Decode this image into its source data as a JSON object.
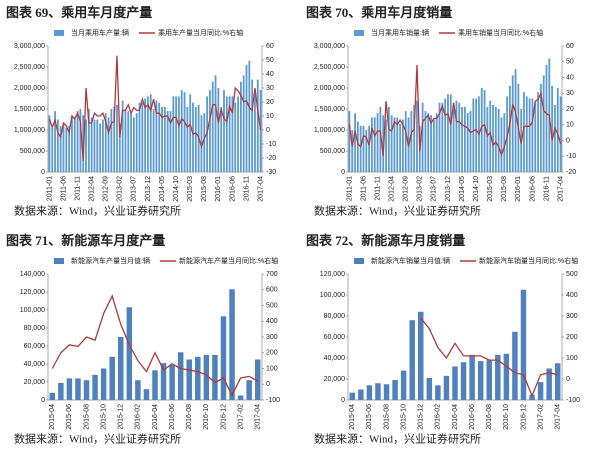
{
  "chart_data": [
    {
      "type": "bar",
      "title": "图表 69、乘用车月度产量",
      "source": "数据来源：Wind，兴业证券研究所",
      "categories": [
        "2011-01",
        null,
        null,
        null,
        null,
        "2011-06",
        null,
        null,
        null,
        null,
        "2011-11",
        null,
        null,
        null,
        null,
        "2012-04",
        null,
        null,
        null,
        null,
        "2012-09",
        null,
        null,
        null,
        null,
        "2013-02",
        null,
        null,
        null,
        null,
        "2013-07",
        null,
        null,
        null,
        null,
        "2013-12",
        null,
        null,
        null,
        null,
        "2014-05",
        null,
        null,
        null,
        null,
        "2014-10",
        null,
        null,
        null,
        null,
        "2015-03",
        null,
        null,
        null,
        null,
        "2015-08",
        null,
        null,
        null,
        null,
        "2016-01",
        null,
        null,
        null,
        null,
        "2016-06",
        null,
        null,
        null,
        null,
        "2016-11",
        null,
        null,
        null,
        null,
        "2017-04"
      ],
      "series": [
        {
          "name": "当月乘用车产量:辆",
          "type": "bar",
          "color": "#5b9bd5",
          "values": [
            1350000,
            1050000,
            1450000,
            1250000,
            1100000,
            1150000,
            1050000,
            1100000,
            1300000,
            1300000,
            1450000,
            1500000,
            1350000,
            1250000,
            1500000,
            1300000,
            1250000,
            1250000,
            1150000,
            1250000,
            1400000,
            1300000,
            1500000,
            1550000,
            1600000,
            1150000,
            1700000,
            1500000,
            1450000,
            1400000,
            1300000,
            1400000,
            1650000,
            1650000,
            1750000,
            1800000,
            1850000,
            1500000,
            1700000,
            1650000,
            1550000,
            1550000,
            1450000,
            1450000,
            1800000,
            1800000,
            1800000,
            1950000,
            1900000,
            1550000,
            1850000,
            1650000,
            1550000,
            1600000,
            1350000,
            1400000,
            1800000,
            1950000,
            2150000,
            2300000,
            2000000,
            1550000,
            1950000,
            1800000,
            1800000,
            1800000,
            1650000,
            1800000,
            2150000,
            2300000,
            2550000,
            2650000,
            2200000,
            1950000,
            2200000,
            1950000
          ]
        },
        {
          "name": "乘用车产量当月同比:%右轴",
          "type": "line",
          "axis": "y2",
          "color": "#b03a3a",
          "values": [
            8,
            2,
            7,
            -2,
            -5,
            5,
            3,
            -2,
            10,
            8,
            12,
            6,
            -22,
            30,
            5,
            5,
            12,
            10,
            10,
            12,
            6,
            -2,
            5,
            6,
            53,
            -5,
            14,
            14,
            18,
            12,
            16,
            14,
            14,
            22,
            16,
            18,
            14,
            22,
            12,
            12,
            9,
            10,
            10,
            5,
            9,
            9,
            3,
            8,
            6,
            2,
            4,
            -3,
            -2,
            -5,
            -12,
            -6,
            -2,
            8,
            18,
            18,
            5,
            15,
            8,
            6,
            17,
            12,
            30,
            28,
            25,
            20,
            21,
            16,
            14,
            30,
            14,
            0
          ]
        }
      ],
      "ylim": [
        0,
        3000000
      ],
      "yticks": [
        0,
        {
          "value": 500000,
          "label": "500,000"
        },
        {
          "value": 1000000,
          "label": "1,000,000"
        },
        {
          "value": 1500000,
          "label": "1,500,000"
        },
        {
          "value": 2000000,
          "label": "2,000,000"
        },
        {
          "value": 2500000,
          "label": "2,500,000"
        },
        {
          "value": 3000000,
          "label": "3,000,000"
        }
      ],
      "y2lim": [
        -30,
        60
      ],
      "y2ticks": [
        -30,
        -20,
        -10,
        0,
        10,
        20,
        30,
        40,
        50,
        60
      ]
    },
    {
      "type": "bar",
      "title": "图表 70、乘用车月度销量",
      "source": "数据来源：Wind，兴业证券研究所",
      "categories": [
        "2011-01",
        null,
        null,
        null,
        null,
        "2011-06",
        null,
        null,
        null,
        null,
        "2011-11",
        null,
        null,
        null,
        null,
        "2012-04",
        null,
        null,
        null,
        null,
        "2012-09",
        null,
        null,
        null,
        null,
        "2013-02",
        null,
        null,
        null,
        null,
        "2013-07",
        null,
        null,
        null,
        null,
        "2013-12",
        null,
        null,
        null,
        null,
        "2014-05",
        null,
        null,
        null,
        null,
        "2014-10",
        null,
        null,
        null,
        null,
        "2015-03",
        null,
        null,
        null,
        null,
        "2015-08",
        null,
        null,
        null,
        null,
        "2016-01",
        null,
        null,
        null,
        null,
        "2016-06",
        null,
        null,
        null,
        null,
        "2016-11",
        null,
        null,
        null,
        null,
        "2017-04"
      ],
      "series": [
        {
          "name": "当月乘用车销量:辆",
          "type": "bar",
          "color": "#5b9bd5",
          "values": [
            1450000,
            1000000,
            1400000,
            1200000,
            1100000,
            1100000,
            1000000,
            1100000,
            1300000,
            1300000,
            1400000,
            1550000,
            1350000,
            1250000,
            1550000,
            1350000,
            1300000,
            1300000,
            1150000,
            1250000,
            1450000,
            1300000,
            1450000,
            1600000,
            1700000,
            1100000,
            1650000,
            1450000,
            1400000,
            1350000,
            1250000,
            1400000,
            1650000,
            1650000,
            1750000,
            1850000,
            1850000,
            1500000,
            1700000,
            1650000,
            1550000,
            1550000,
            1400000,
            1450000,
            1750000,
            1750000,
            1800000,
            2000000,
            1950000,
            1550000,
            1700000,
            1600000,
            1550000,
            1500000,
            1300000,
            1400000,
            1800000,
            2050000,
            2300000,
            2450000,
            2100000,
            1500000,
            1900000,
            1800000,
            1750000,
            1750000,
            1650000,
            1900000,
            2100000,
            2300000,
            2550000,
            2700000,
            2050000,
            1600000,
            2000000,
            1800000
          ]
        },
        {
          "name": "乘用车销量当月同比:%右轴",
          "type": "line",
          "axis": "y2",
          "color": "#b03a3a",
          "values": [
            10,
            -4,
            6,
            -2,
            -4,
            3,
            2,
            -3,
            8,
            3,
            6,
            6,
            -10,
            25,
            7,
            6,
            12,
            10,
            13,
            10,
            6,
            -4,
            5,
            7,
            48,
            -7,
            12,
            14,
            16,
            11,
            14,
            14,
            17,
            22,
            16,
            17,
            10,
            24,
            12,
            12,
            10,
            9,
            8,
            5,
            6,
            7,
            4,
            9,
            10,
            3,
            5,
            -3,
            -1,
            -4,
            -9,
            -4,
            2,
            11,
            23,
            18,
            8,
            -2,
            9,
            9,
            9,
            12,
            25,
            26,
            30,
            19,
            17,
            16,
            0,
            8,
            4,
            -2
          ]
        }
      ],
      "ylim": [
        0,
        3000000
      ],
      "yticks": [
        0,
        {
          "value": 500000,
          "label": "500,000"
        },
        {
          "value": 1000000,
          "label": "1,000,000"
        },
        {
          "value": 1500000,
          "label": "1,500,000"
        },
        {
          "value": 2000000,
          "label": "2,000,000"
        },
        {
          "value": 2500000,
          "label": "2,500,000"
        },
        {
          "value": 3000000,
          "label": "3,000,000"
        }
      ],
      "y2lim": [
        -20,
        60
      ],
      "y2ticks": [
        -20,
        -10,
        0,
        10,
        20,
        30,
        40,
        50,
        60
      ]
    },
    {
      "type": "bar",
      "title": "图表 71、新能源车月度产量",
      "source": "数据来源：Wind，兴业证券研究所",
      "categories": [
        "2015-04",
        null,
        "2015-06",
        null,
        "2015-08",
        null,
        "2015-10",
        null,
        "2015-12",
        null,
        "2016-02",
        null,
        "2016-04",
        null,
        "2016-06",
        null,
        "2016-08",
        null,
        "2016-10",
        null,
        "2016-12",
        null,
        "2017-02",
        null,
        "2017-04"
      ],
      "series": [
        {
          "name": "新能源汽车产量当月值:辆",
          "type": "bar",
          "color": "#4f81bd",
          "values": [
            8000,
            19000,
            24000,
            24000,
            22000,
            28000,
            35000,
            48000,
            70000,
            103000,
            22000,
            12000,
            33000,
            41000,
            39000,
            53000,
            45000,
            48000,
            50000,
            50000,
            93000,
            123000,
            5000,
            22000,
            45000
          ]
        },
        {
          "name": "新能源汽车产量当月同比:%右轴",
          "type": "line",
          "axis": "y2",
          "color": "#b03a3a",
          "values": [
            100,
            200,
            250,
            240,
            300,
            280,
            450,
            560,
            380,
            250,
            150,
            80,
            200,
            90,
            130,
            100,
            90,
            80,
            60,
            10,
            40,
            -70,
            40,
            50,
            20
          ]
        }
      ],
      "ylim": [
        0,
        140000
      ],
      "yticks": [
        0,
        {
          "value": 20000,
          "label": "20,000"
        },
        {
          "value": 40000,
          "label": "40,000"
        },
        {
          "value": 60000,
          "label": "60,000"
        },
        {
          "value": 80000,
          "label": "80,000"
        },
        {
          "value": 100000,
          "label": "100,000"
        },
        {
          "value": 120000,
          "label": "120,000"
        },
        {
          "value": 140000,
          "label": "140,000"
        }
      ],
      "y2lim": [
        -100,
        700
      ],
      "y2ticks": [
        -100,
        0,
        100,
        200,
        300,
        400,
        500,
        600,
        700
      ]
    },
    {
      "type": "bar",
      "title": "图表 72、新能源车月度销量",
      "source": "数据来源：Wind，兴业证券研究所",
      "categories": [
        "2015-04",
        null,
        "2015-06",
        null,
        "2015-08",
        null,
        "2015-10",
        null,
        "2015-12",
        null,
        "2016-02",
        null,
        "2016-04",
        null,
        "2016-06",
        null,
        "2016-08",
        null,
        "2016-10",
        null,
        "2016-12",
        null,
        "2017-02",
        null,
        "2017-04"
      ],
      "series": [
        {
          "name": "新能源汽车销量当月值:辆",
          "type": "bar",
          "color": "#4f81bd",
          "values": [
            7000,
            10000,
            14000,
            16000,
            15000,
            19000,
            28000,
            76000,
            84000,
            21000,
            14000,
            23000,
            32000,
            36000,
            43000,
            37000,
            38000,
            43000,
            44000,
            65000,
            105000,
            5000,
            17000,
            30000,
            35000
          ]
        },
        {
          "name": "新能源汽车销量当月同比:%右轴",
          "type": "line",
          "axis": "y2",
          "color": "#b03a3a",
          "values": [
            null,
            null,
            null,
            null,
            null,
            null,
            null,
            null,
            290,
            240,
            150,
            100,
            170,
            110,
            110,
            110,
            90,
            90,
            60,
            30,
            20,
            -80,
            20,
            30,
            20
          ]
        }
      ],
      "ylim": [
        0,
        120000
      ],
      "yticks": [
        0,
        {
          "value": 20000,
          "label": "20,000"
        },
        {
          "value": 40000,
          "label": "40,000"
        },
        {
          "value": 60000,
          "label": "60,000"
        },
        {
          "value": 80000,
          "label": "80,000"
        },
        {
          "value": 100000,
          "label": "100,000"
        },
        {
          "value": 120000,
          "label": "120,000"
        }
      ],
      "y2lim": [
        -100,
        500
      ],
      "y2ticks": [
        -100,
        0,
        100,
        200,
        300,
        400,
        500
      ]
    }
  ]
}
